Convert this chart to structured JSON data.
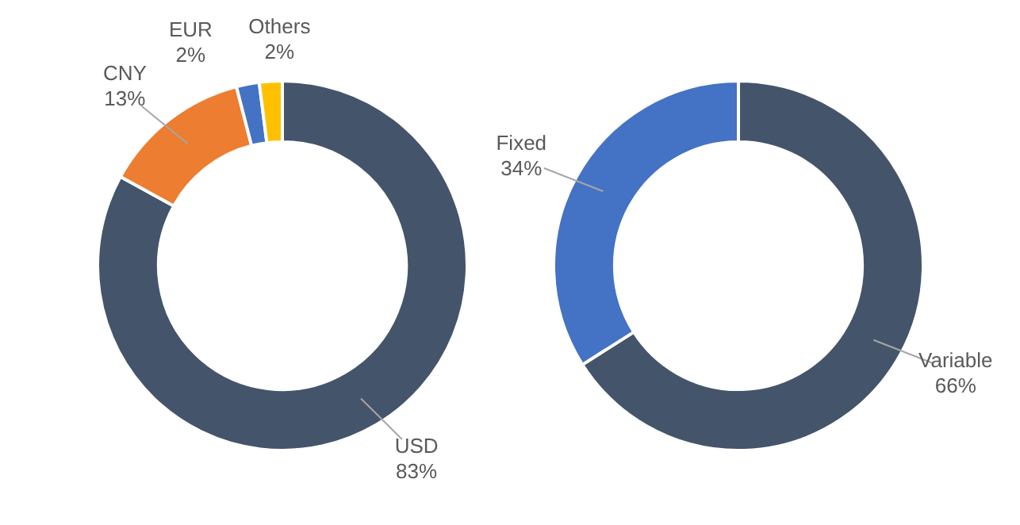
{
  "chart_data": [
    {
      "type": "donut",
      "categories": [
        "USD",
        "CNY",
        "EUR",
        "Others"
      ],
      "values": [
        83,
        13,
        2,
        2
      ],
      "colors": [
        "#44546a",
        "#ed7d31",
        "#4472c4",
        "#ffc000"
      ],
      "value_labels": [
        "83%",
        "13%",
        "2%",
        "2%"
      ],
      "legend": false
    },
    {
      "type": "donut",
      "categories": [
        "Variable",
        "Fixed"
      ],
      "values": [
        66,
        34
      ],
      "colors": [
        "#44546a",
        "#4472c4"
      ],
      "value_labels": [
        "66%",
        "34%"
      ],
      "legend": false
    }
  ]
}
